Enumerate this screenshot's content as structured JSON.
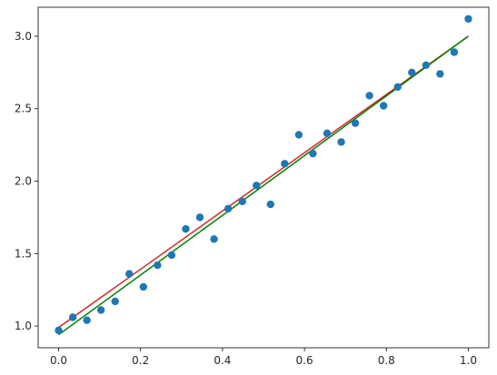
{
  "chart_data": {
    "type": "scatter",
    "title": "",
    "xlabel": "",
    "ylabel": "",
    "xlim": [
      -0.05,
      1.05
    ],
    "ylim": [
      0.85,
      3.2
    ],
    "grid": false,
    "x_ticks": [
      0.0,
      0.2,
      0.4,
      0.6,
      0.8,
      1.0
    ],
    "y_ticks": [
      1.0,
      1.5,
      2.0,
      2.5,
      3.0
    ],
    "x_tick_labels": [
      "0.0",
      "0.2",
      "0.4",
      "0.6",
      "0.8",
      "1.0"
    ],
    "y_tick_labels": [
      "1.0",
      "1.5",
      "2.0",
      "2.5",
      "3.0"
    ],
    "points": {
      "color": "#1f77b4",
      "x": [
        0.0,
        0.0345,
        0.069,
        0.1034,
        0.1379,
        0.1724,
        0.2069,
        0.2414,
        0.2759,
        0.3103,
        0.3448,
        0.3793,
        0.4138,
        0.4483,
        0.4828,
        0.5172,
        0.5517,
        0.5862,
        0.6207,
        0.6552,
        0.6897,
        0.7241,
        0.7586,
        0.7931,
        0.8276,
        0.8621,
        0.8966,
        0.931,
        0.9655,
        1.0
      ],
      "y": [
        0.97,
        1.06,
        1.04,
        1.11,
        1.17,
        1.36,
        1.27,
        1.42,
        1.49,
        1.67,
        1.75,
        1.6,
        1.81,
        1.86,
        1.97,
        1.84,
        2.12,
        2.32,
        2.19,
        2.33,
        2.27,
        2.4,
        2.59,
        2.52,
        2.65,
        2.75,
        2.8,
        2.74,
        2.89,
        3.12
      ]
    },
    "lines": [
      {
        "color": "#d62728",
        "x": [
          0.0,
          1.0
        ],
        "y": [
          0.99,
          3.0
        ]
      },
      {
        "color": "#008000",
        "x": [
          0.0,
          1.0
        ],
        "y": [
          0.94,
          3.0
        ]
      }
    ]
  }
}
